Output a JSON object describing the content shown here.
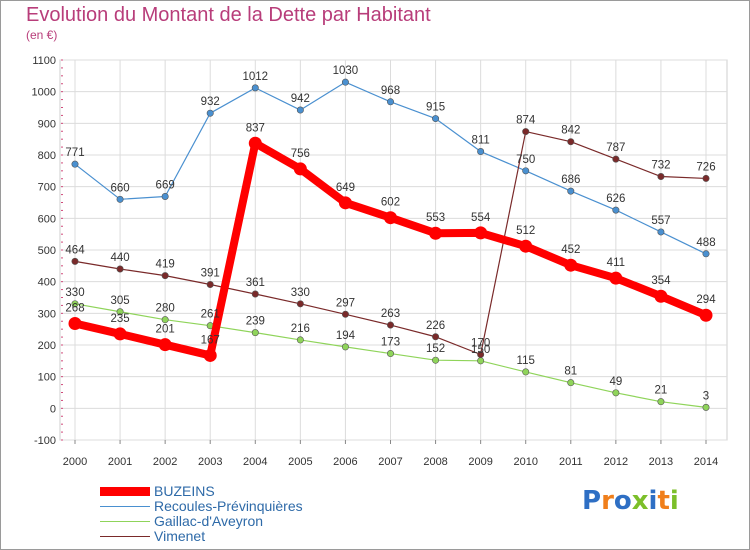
{
  "title": "Evolution du Montant de la Dette par Habitant",
  "subtitle": "(en €)",
  "logo": "Proxiti",
  "chart_data": {
    "type": "line",
    "x": [
      "2000",
      "2001",
      "2002",
      "2003",
      "2004",
      "2005",
      "2006",
      "2007",
      "2008",
      "2009",
      "2010",
      "2011",
      "2012",
      "2013",
      "2014"
    ],
    "ylim": [
      -100,
      1100
    ],
    "yticks": [
      -100,
      0,
      100,
      200,
      300,
      400,
      500,
      600,
      700,
      800,
      900,
      1000,
      1100
    ],
    "grid": true,
    "legend_position": "bottom-left",
    "series": [
      {
        "name": "BUZEINS",
        "color": "#ff0000",
        "values": [
          268,
          235,
          201,
          167,
          837,
          756,
          649,
          602,
          553,
          554,
          512,
          452,
          411,
          354,
          294
        ],
        "labels": [
          "268",
          "235",
          "201",
          "167",
          "837",
          "756",
          "649",
          "602",
          "553",
          "554",
          "512",
          "452",
          "411",
          "354",
          "294"
        ]
      },
      {
        "name": "Recoules-Prévinquières",
        "color": "#4a90d0",
        "values": [
          771,
          660,
          669,
          932,
          1012,
          942,
          1030,
          968,
          915,
          811,
          750,
          686,
          626,
          557,
          488
        ],
        "labels": [
          "771",
          "660",
          "669",
          "932",
          "1012",
          "942",
          "1030",
          "968",
          "915",
          "811",
          "750",
          "686",
          "626",
          "557",
          "488"
        ]
      },
      {
        "name": "Gaillac-d'Aveyron",
        "color": "#8fd45a",
        "values": [
          330,
          305,
          280,
          261,
          239,
          216,
          194,
          173,
          152,
          150,
          115,
          81,
          49,
          21,
          3
        ],
        "labels": [
          "330",
          "305",
          "280",
          "261",
          "239",
          "216",
          "194",
          "173",
          "152",
          "150",
          "115",
          "81",
          "49",
          "21",
          "3"
        ]
      },
      {
        "name": "Vimenet",
        "color": "#7a2a2a",
        "values": [
          464,
          440,
          419,
          391,
          361,
          330,
          297,
          263,
          226,
          170,
          874,
          842,
          787,
          732,
          726
        ],
        "labels": [
          "464",
          "440",
          "419",
          "391",
          "361",
          "330",
          "297",
          "263",
          "226",
          "170",
          "874",
          "842",
          "787",
          "732",
          "726"
        ]
      }
    ]
  }
}
